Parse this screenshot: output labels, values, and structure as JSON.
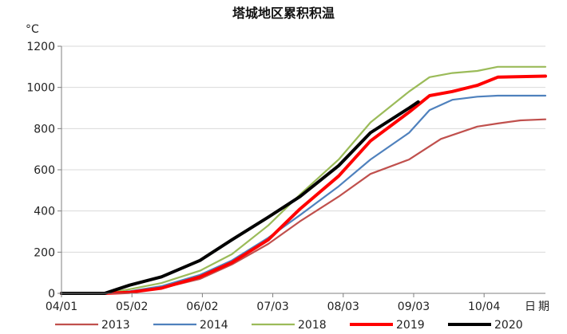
{
  "chart_data": {
    "type": "line",
    "title": "塔城地区累积积温",
    "ylabel": "°C",
    "xlabel": "日期",
    "ylim": [
      0,
      1200
    ],
    "yticks": [
      0,
      200,
      400,
      600,
      800,
      1000,
      1200
    ],
    "x_range": [
      "04/01",
      "10/31"
    ],
    "xticks": [
      "04/01",
      "05/02",
      "06/02",
      "07/03",
      "08/03",
      "09/03",
      "10/04"
    ],
    "grid": "horizontal",
    "legend_position": "bottom",
    "series": [
      {
        "name": "2013",
        "color": "#c0504d",
        "points": [
          [
            "04/01",
            0
          ],
          [
            "04/20",
            0
          ],
          [
            "05/01",
            5
          ],
          [
            "05/15",
            25
          ],
          [
            "06/01",
            70
          ],
          [
            "06/15",
            140
          ],
          [
            "07/01",
            240
          ],
          [
            "07/15",
            350
          ],
          [
            "08/01",
            470
          ],
          [
            "08/15",
            580
          ],
          [
            "09/01",
            650
          ],
          [
            "09/15",
            750
          ],
          [
            "10/01",
            810
          ],
          [
            "10/10",
            825
          ],
          [
            "10/20",
            840
          ],
          [
            "10/31",
            845
          ]
        ]
      },
      {
        "name": "2014",
        "color": "#4f81bd",
        "points": [
          [
            "04/01",
            0
          ],
          [
            "04/20",
            0
          ],
          [
            "05/01",
            10
          ],
          [
            "05/15",
            35
          ],
          [
            "06/01",
            90
          ],
          [
            "06/15",
            160
          ],
          [
            "07/01",
            270
          ],
          [
            "07/15",
            380
          ],
          [
            "08/01",
            520
          ],
          [
            "08/15",
            650
          ],
          [
            "09/01",
            780
          ],
          [
            "09/10",
            890
          ],
          [
            "09/20",
            940
          ],
          [
            "10/01",
            955
          ],
          [
            "10/10",
            960
          ],
          [
            "10/31",
            960
          ]
        ]
      },
      {
        "name": "2018",
        "color": "#9bbb59",
        "points": [
          [
            "04/01",
            0
          ],
          [
            "04/20",
            0
          ],
          [
            "05/01",
            20
          ],
          [
            "05/15",
            50
          ],
          [
            "06/01",
            110
          ],
          [
            "06/15",
            190
          ],
          [
            "07/01",
            330
          ],
          [
            "07/15",
            480
          ],
          [
            "08/01",
            650
          ],
          [
            "08/15",
            830
          ],
          [
            "09/01",
            980
          ],
          [
            "09/10",
            1050
          ],
          [
            "09/20",
            1070
          ],
          [
            "10/01",
            1080
          ],
          [
            "10/10",
            1100
          ],
          [
            "10/31",
            1100
          ]
        ]
      },
      {
        "name": "2019",
        "color": "#ff0000",
        "points": [
          [
            "04/01",
            0
          ],
          [
            "04/20",
            0
          ],
          [
            "05/01",
            5
          ],
          [
            "05/15",
            25
          ],
          [
            "06/01",
            80
          ],
          [
            "06/15",
            150
          ],
          [
            "07/01",
            260
          ],
          [
            "07/15",
            410
          ],
          [
            "08/01",
            570
          ],
          [
            "08/15",
            740
          ],
          [
            "09/01",
            880
          ],
          [
            "09/10",
            960
          ],
          [
            "09/20",
            980
          ],
          [
            "10/01",
            1010
          ],
          [
            "10/10",
            1050
          ],
          [
            "10/31",
            1055
          ]
        ]
      },
      {
        "name": "2020",
        "color": "#000000",
        "points": [
          [
            "04/01",
            0
          ],
          [
            "04/20",
            0
          ],
          [
            "05/01",
            40
          ],
          [
            "05/15",
            80
          ],
          [
            "06/01",
            160
          ],
          [
            "06/15",
            260
          ],
          [
            "07/01",
            370
          ],
          [
            "07/15",
            470
          ],
          [
            "08/01",
            620
          ],
          [
            "08/15",
            780
          ],
          [
            "09/01",
            900
          ],
          [
            "09/05",
            930
          ]
        ]
      }
    ]
  }
}
